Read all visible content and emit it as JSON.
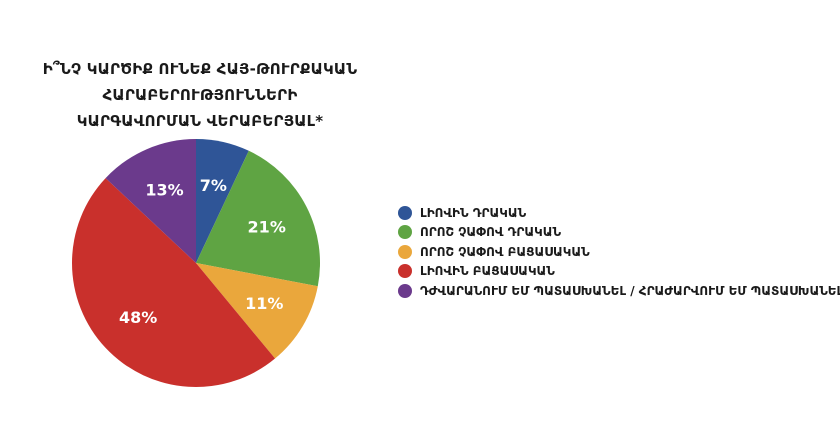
{
  "chart_data": {
    "type": "pie",
    "title": "Ի՞նչ կարծիք ունեք հայ-թուրքական հարաբերությունների կարգավորման վերաբերյալ*",
    "slices": [
      {
        "label": "Լիովին դրական",
        "value": 7,
        "color": "#2f5597"
      },
      {
        "label": "Որոշ չափով դրական",
        "value": 21,
        "color": "#5fa443"
      },
      {
        "label": "Որոշ չափով բացասական",
        "value": 11,
        "color": "#eaa73c"
      },
      {
        "label": "Լիովին բացասական",
        "value": 48,
        "color": "#c9302c"
      },
      {
        "label": "Դժվարանում եմ պատասխանել / Հրաժարվում եմ պատասխանել",
        "value": 13,
        "color": "#6b3a8c"
      }
    ],
    "value_suffix": "%",
    "legend_position": "right"
  }
}
